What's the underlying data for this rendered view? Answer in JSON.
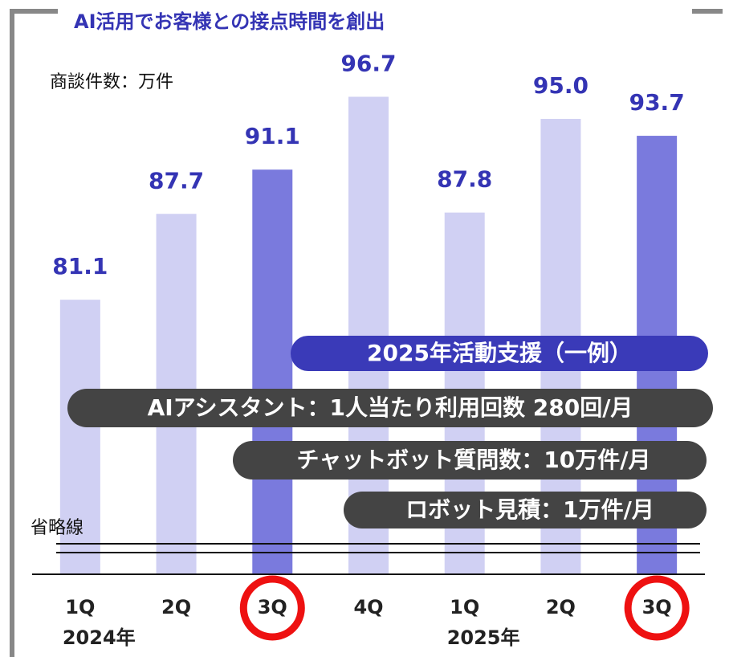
{
  "chart_data": {
    "type": "bar",
    "subtitle": "AI活用でお客様との接点時間を創出",
    "unit_label": "商談件数：万件",
    "break_label": "省略線",
    "categories": [
      "1Q",
      "2Q",
      "3Q",
      "4Q",
      "1Q",
      "2Q",
      "3Q"
    ],
    "year_labels": [
      {
        "index": 0,
        "label": "2024年"
      },
      {
        "index": 4,
        "label": "2025年"
      }
    ],
    "values": [
      81.1,
      87.7,
      91.1,
      96.7,
      87.8,
      95.0,
      93.7
    ],
    "value_labels": [
      "81.1",
      "87.7",
      "91.1",
      "96.7",
      "87.8",
      "95.0",
      "93.7"
    ],
    "colors": [
      "#d0d0f3",
      "#d0d0f3",
      "#7a7add",
      "#d0d0f3",
      "#d0d0f3",
      "#d0d0f3",
      "#7a7add"
    ],
    "label_color": "#3434b4",
    "highlighted_categories": [
      2,
      6
    ],
    "highlight_color": "#ee1111",
    "ylim": [
      60,
      100
    ],
    "annotations": {
      "heading": "2025年活動支援（一例）",
      "items": [
        "AIアシスタント：1人当たり利用回数 280回/月",
        "チャットボット質問数：10万件/月",
        "ロボット見積：1万件/月"
      ]
    }
  }
}
